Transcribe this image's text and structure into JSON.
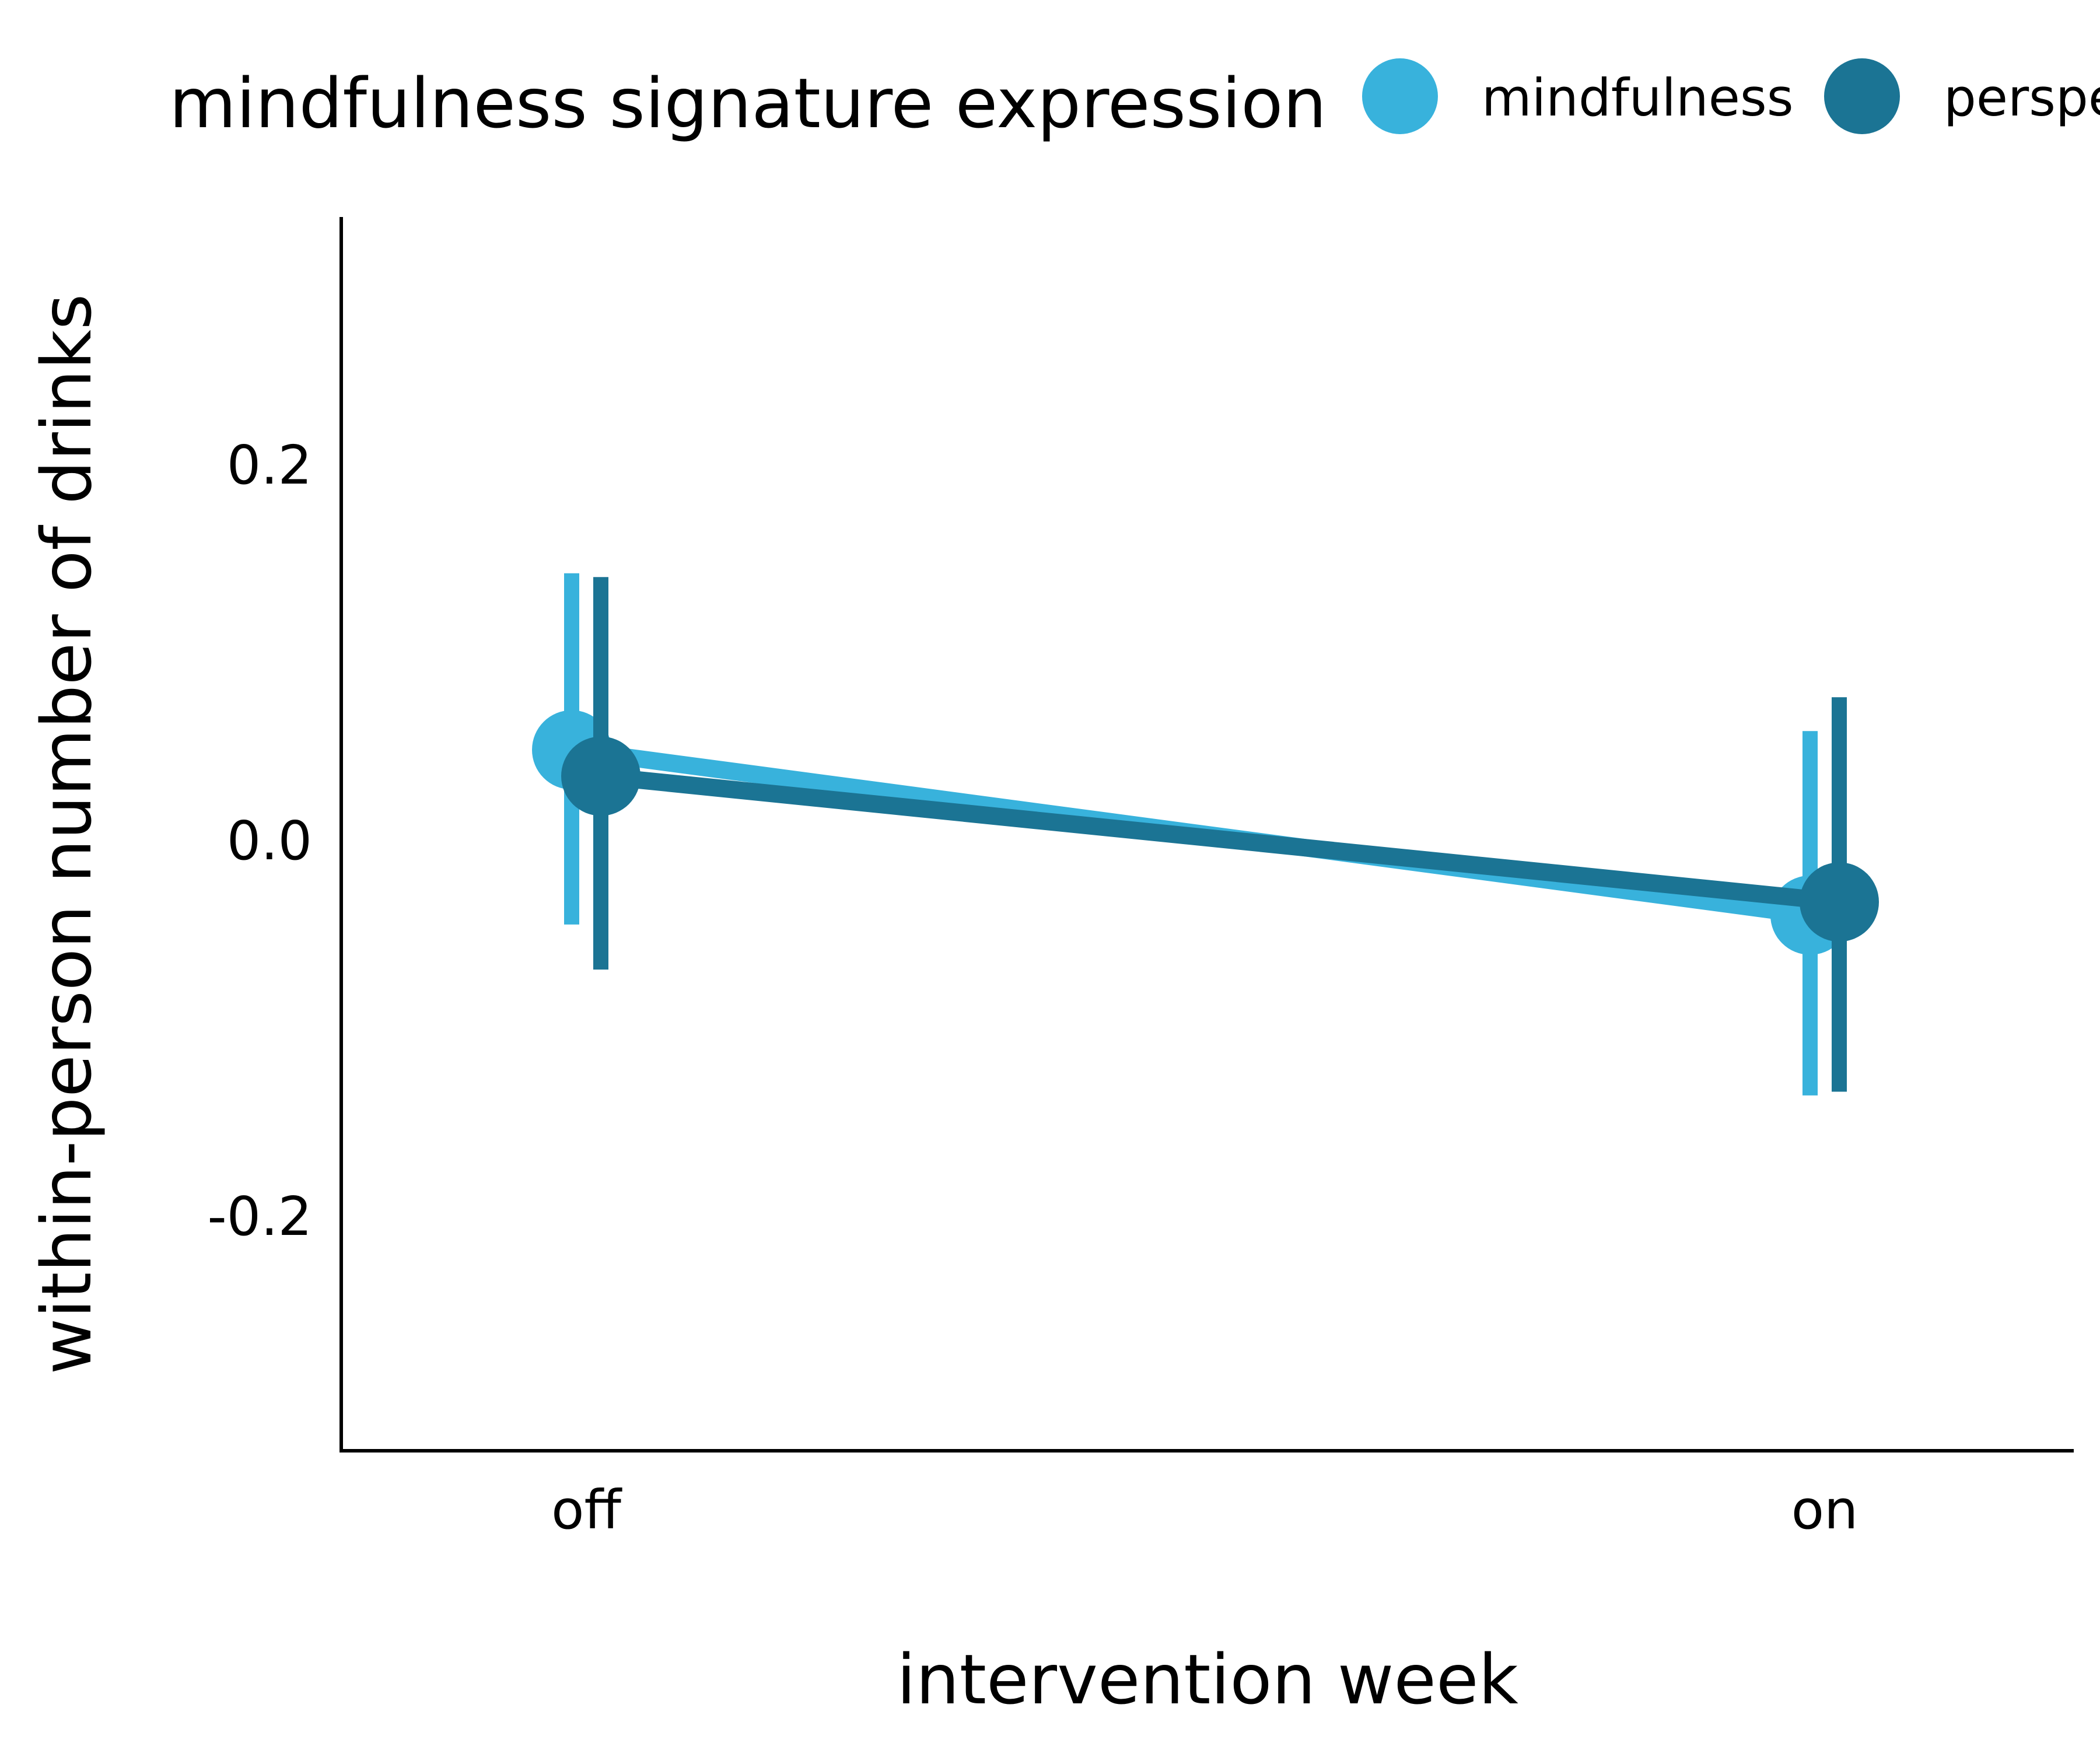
{
  "chart_data": {
    "type": "line",
    "title": "",
    "xlabel": "intervention week",
    "ylabel": "within-person number of drinks",
    "categories": [
      "off",
      "on"
    ],
    "ylim": [
      -0.325,
      0.33
    ],
    "y_ticks": [
      "0.2",
      "0.0",
      "-0.2"
    ],
    "y_tick_values": [
      0.2,
      0.0,
      -0.2
    ],
    "grid": false,
    "legend": {
      "title": "mindfulness signature expression",
      "position": "top",
      "entries": [
        "mindfulness",
        "perspe"
      ]
    },
    "series": [
      {
        "name": "mindfulness",
        "color": "#38b2dc",
        "values": [
          0.048,
          -0.04
        ],
        "ci_low": [
          -0.045,
          -0.136
        ],
        "ci_high": [
          0.142,
          0.058
        ]
      },
      {
        "name": "perspe",
        "color": "#1b7494",
        "values": [
          0.034,
          -0.033
        ],
        "ci_low": [
          -0.069,
          -0.134
        ],
        "ci_high": [
          0.14,
          0.076
        ]
      }
    ]
  }
}
